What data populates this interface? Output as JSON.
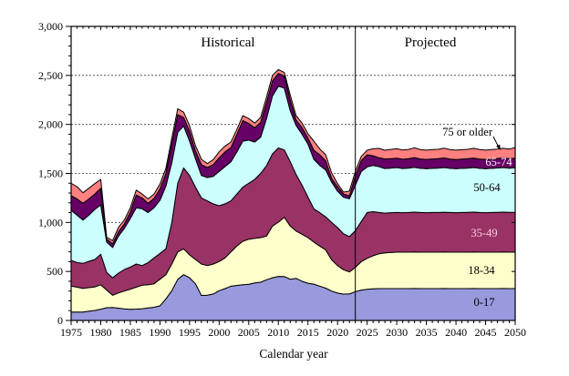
{
  "chart_data": {
    "type": "area",
    "stacked": true,
    "xlabel": "Calendar year",
    "ylim": [
      0,
      3000
    ],
    "ygrid_step": 500,
    "y_minor_step": 100,
    "ytick_labels": [
      "0",
      "500",
      "1,000",
      "1,500",
      "2,000",
      "2,500",
      "3,000"
    ],
    "xtick_labels": [
      "1975",
      "1980",
      "1985",
      "1990",
      "1995",
      "2000",
      "2005",
      "2010",
      "2015",
      "2020",
      "2025",
      "2030",
      "2035",
      "2040",
      "2045",
      "2050"
    ],
    "x_start": 1975,
    "x_end": 2050,
    "x_step": 1,
    "grid_on": true,
    "divider_year": 2023,
    "annotations": [
      {
        "id": "historical",
        "text": "Historical"
      },
      {
        "id": "projected",
        "text": "Projected"
      }
    ],
    "callout": {
      "text": "75 or older"
    },
    "series": [
      {
        "name": "0-17",
        "color": "#9999DD",
        "values": [
          85,
          85,
          86,
          95,
          102,
          115,
          130,
          133,
          125,
          118,
          114,
          116,
          120,
          127,
          135,
          150,
          220,
          304,
          420,
          467,
          436,
          374,
          255,
          257,
          270,
          304,
          325,
          350,
          358,
          365,
          370,
          383,
          390,
          415,
          436,
          450,
          449,
          421,
          430,
          400,
          380,
          371,
          350,
          330,
          300,
          280,
          269,
          270,
          294,
          310,
          318,
          322,
          325,
          325,
          325,
          325,
          325,
          325,
          326,
          325,
          325,
          325,
          325,
          326,
          325,
          325,
          325,
          325,
          326,
          325,
          325,
          325,
          325,
          326,
          325,
          325
        ]
      },
      {
        "name": "18-34",
        "color": "#FFFFCC",
        "values": [
          265,
          255,
          242,
          240,
          241,
          250,
          180,
          124,
          156,
          182,
          205,
          224,
          239,
          238,
          239,
          271,
          247,
          272,
          279,
          264,
          233,
          248,
          321,
          303,
          306,
          297,
          313,
          349,
          403,
          443,
          459,
          456,
          455,
          446,
          527,
          553,
          604,
          542,
          483,
          480,
          465,
          429,
          409,
          390,
          319,
          280,
          248,
          225,
          248,
          290,
          316,
          338,
          356,
          365,
          370,
          372,
          372,
          372,
          372,
          372,
          372,
          372,
          372,
          372,
          372,
          372,
          372,
          372,
          372,
          372,
          372,
          372,
          372,
          372,
          372,
          372
        ]
      },
      {
        "name": "35-49",
        "color": "#993366",
        "values": [
          263,
          251,
          254,
          269,
          279,
          310,
          180,
          179,
          202,
          220,
          226,
          236,
          201,
          226,
          264,
          263,
          264,
          424,
          701,
          826,
          811,
          738,
          674,
          660,
          614,
          569,
          552,
          521,
          529,
          552,
          571,
          601,
          655,
          719,
          737,
          757,
          687,
          657,
          577,
          500,
          415,
          339,
          341,
          336,
          381,
          387,
          368,
          360,
          375,
          410,
          468,
          450,
          421,
          405,
          405,
          405,
          403,
          405,
          407,
          405,
          403,
          405,
          405,
          406,
          405,
          403,
          405,
          406,
          407,
          405,
          403,
          405,
          406,
          407,
          406,
          407
        ]
      },
      {
        "name": "50-64",
        "color": "#CCFFFF",
        "values": [
          511,
          484,
          442,
          471,
          511,
          505,
          310,
          309,
          377,
          420,
          495,
          574,
          580,
          511,
          512,
          542,
          639,
          610,
          520,
          428,
          350,
          290,
          230,
          238,
          280,
          350,
          380,
          400,
          430,
          470,
          440,
          380,
          370,
          480,
          590,
          630,
          630,
          520,
          500,
          520,
          540,
          505,
          482,
          479,
          412,
          372,
          372,
          387,
          463,
          510,
          465,
          472,
          468,
          455,
          455,
          458,
          450,
          453,
          457,
          450,
          448,
          450,
          453,
          456,
          450,
          448,
          450,
          452,
          455,
          450,
          448,
          450,
          453,
          455,
          451,
          454
        ]
      },
      {
        "name": "65-74",
        "color": "#660066",
        "values": [
          148,
          165,
          171,
          165,
          157,
          170,
          30,
          37,
          45,
          45,
          65,
          130,
          110,
          93,
          95,
          114,
          130,
          190,
          180,
          85,
          100,
          80,
          110,
          102,
          120,
          140,
          150,
          145,
          180,
          210,
          170,
          145,
          150,
          165,
          155,
          130,
          125,
          110,
          55,
          70,
          62,
          93,
          108,
          93,
          38,
          46,
          33,
          30,
          94,
          110,
          123,
          98,
          90,
          98,
          95,
          95,
          95,
          95,
          100,
          96,
          95,
          96,
          95,
          98,
          94,
          94,
          95,
          95,
          97,
          95,
          95,
          95,
          96,
          98,
          96,
          98
        ]
      },
      {
        "name": "75 or older",
        "color": "#FF8080",
        "values": [
          128,
          125,
          108,
          110,
          106,
          90,
          20,
          33,
          45,
          40,
          45,
          50,
          40,
          45,
          45,
          50,
          50,
          60,
          60,
          55,
          55,
          53,
          54,
          40,
          50,
          60,
          60,
          55,
          50,
          50,
          50,
          50,
          50,
          55,
          55,
          40,
          35,
          50,
          45,
          45,
          43,
          93,
          60,
          62,
          55,
          31,
          20,
          48,
          46,
          45,
          47,
          72,
          95,
          89,
          95,
          97,
          95,
          95,
          100,
          94,
          95,
          96,
          96,
          100,
          96,
          96,
          95,
          96,
          99,
          96,
          95,
          96,
          96,
          98,
          98,
          109
        ]
      }
    ]
  }
}
